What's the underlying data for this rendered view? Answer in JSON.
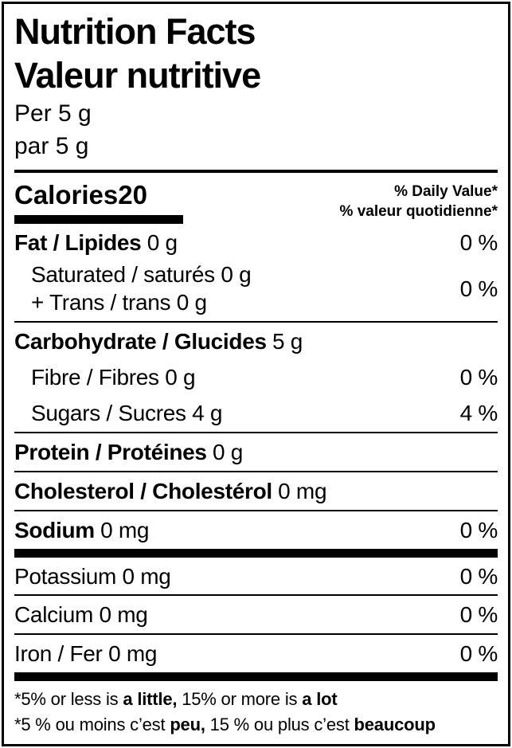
{
  "colors": {
    "text": "#000000",
    "background": "#ffffff"
  },
  "header": {
    "title_en": "Nutrition Facts",
    "title_fr": "Valeur nutritive",
    "serving_en": "Per 5 g",
    "serving_fr": "par 5 g"
  },
  "calories": {
    "label": "Calories",
    "value": "20",
    "dv_header_en": "% Daily Value*",
    "dv_header_fr": "% valeur quotidienne*"
  },
  "nutrients": {
    "fat": {
      "name": "Fat / Lipides",
      "amount": "0 g",
      "dv": "0 %"
    },
    "saturated_trans": {
      "line1": "Saturated / saturés 0 g",
      "line2": "+ Trans / trans 0 g",
      "dv": "0 %"
    },
    "carbohydrate": {
      "name": "Carbohydrate / Glucides",
      "amount": "5 g"
    },
    "fibre": {
      "name": "Fibre / Fibres 0 g",
      "dv": "0 %"
    },
    "sugars": {
      "name": "Sugars / Sucres 4 g",
      "dv": "4 %"
    },
    "protein": {
      "name": "Protein / Protéines",
      "amount": "0 g"
    },
    "cholesterol": {
      "name": "Cholesterol / Cholestérol",
      "amount": "0 mg"
    },
    "sodium": {
      "name": "Sodium",
      "amount": "0 mg",
      "dv": "0 %"
    },
    "potassium": {
      "name": "Potassium 0 mg",
      "dv": "0 %"
    },
    "calcium": {
      "name": "Calcium 0 mg",
      "dv": "0 %"
    },
    "iron": {
      "name": "Iron / Fer 0 mg",
      "dv": "0 %"
    }
  },
  "footnotes": {
    "en": {
      "t1": "*5% or less is ",
      "b1": "a little,",
      "t2": " 15% or more is ",
      "b2": "a lot"
    },
    "fr": {
      "t1": "*5 % ou moins c’est ",
      "b1": "peu,",
      "t2": " 15 % ou plus c’est ",
      "b2": "beaucoup"
    }
  }
}
